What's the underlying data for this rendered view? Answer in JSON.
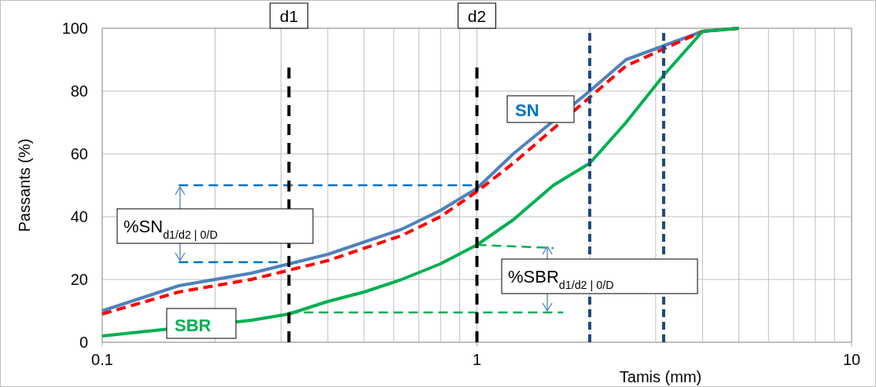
{
  "chart_data": {
    "type": "line",
    "xlabel": "Tamis (mm)",
    "ylabel": "Passants (%)",
    "log": "x",
    "grid": true,
    "marker": "none",
    "xlim": [
      0.1,
      10
    ],
    "xticks": [
      0.1,
      1,
      10
    ],
    "ylim": [
      0,
      100
    ],
    "yticks": [
      0,
      20,
      40,
      60,
      80,
      100
    ],
    "series": [
      {
        "color": "#4f81bd",
        "line_style": "solid",
        "x": [
          0.1,
          0.16,
          0.25,
          0.4,
          0.63,
          0.8,
          1,
          1.25,
          2,
          2.5,
          4,
          5
        ],
        "values": [
          10,
          18,
          22,
          28,
          36,
          42,
          49,
          60,
          80,
          90,
          99,
          100
        ]
      },
      {
        "color": "#ff0000",
        "line_style": "dashed",
        "x": [
          0.1,
          0.16,
          0.25,
          0.4,
          0.63,
          0.8,
          1,
          1.25,
          2,
          2.5,
          4,
          5
        ],
        "values": [
          9,
          16,
          20,
          26,
          34,
          40,
          48,
          57,
          78,
          88,
          99,
          100
        ]
      },
      {
        "color": "#00b050",
        "line_style": "solid",
        "x": [
          0.1,
          0.25,
          0.315,
          0.4,
          0.5,
          0.63,
          0.8,
          1,
          1.25,
          1.6,
          2,
          2.5,
          3.15,
          4,
          5
        ],
        "values": [
          2,
          7,
          9,
          13,
          16,
          20,
          25,
          31,
          39,
          50,
          57,
          70,
          85,
          99,
          100
        ]
      },
      {
        "color": "#0070c0",
        "line_style": "dashed",
        "x": [
          0.16,
          1
        ],
        "values": [
          50,
          50
        ]
      },
      {
        "color": "#0070c0",
        "line_style": "dashed",
        "x": [
          0.16,
          0.3
        ],
        "values": [
          25.5,
          25.5
        ]
      },
      {
        "color": "#00b050",
        "line_style": "dashed",
        "x": [
          1,
          1.6
        ],
        "values": [
          31,
          30
        ]
      },
      {
        "color": "#00b050",
        "line_style": "dashed",
        "x": [
          0.315,
          1.7
        ],
        "values": [
          9.5,
          9.5
        ]
      }
    ],
    "ref_lines": [
      {
        "axis": "x",
        "value": 0.315,
        "label": "d1",
        "color": "#000000",
        "line_style": "dashed"
      },
      {
        "axis": "x",
        "value": 1,
        "label": "d2",
        "color": "#000000",
        "line_style": "dashed"
      },
      {
        "axis": "x",
        "value": 2,
        "color": "#1f497d",
        "line_style": "dashed"
      },
      {
        "axis": "x",
        "value": 3.15,
        "color": "#1f497d",
        "line_style": "dashed"
      }
    ],
    "annotations": [
      "%SN$_{d1/d2 | 0/D}$",
      "%SBR$_{d1/d2 | 0/D}$",
      "SN",
      "SBR"
    ]
  }
}
